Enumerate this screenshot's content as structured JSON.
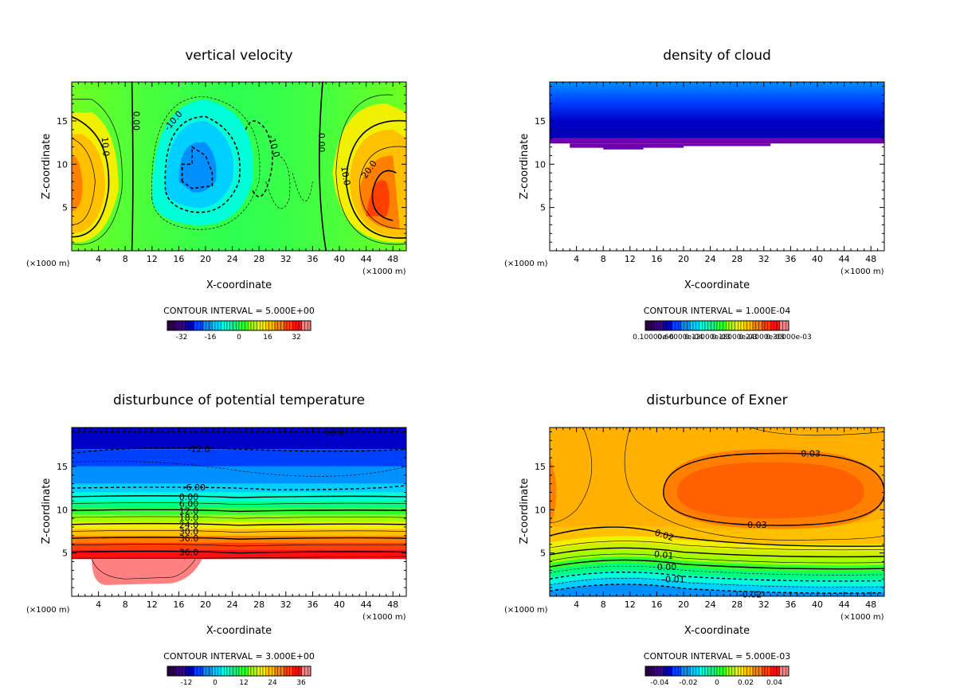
{
  "chart_data": [
    {
      "type": "heatmap",
      "title": "vertical velocity",
      "xlabel": "X-coordinate",
      "ylabel": "Z-coordinate",
      "x_unit": "(×1000 m)",
      "x_ticks": [
        "4",
        "8",
        "12",
        "16",
        "20",
        "24",
        "28",
        "32",
        "36",
        "40",
        "44",
        "48"
      ],
      "y_ticks": [
        "5",
        "10",
        "15"
      ],
      "xlim": [
        0,
        50
      ],
      "ylim": [
        0,
        19.5
      ],
      "contour_interval": "CONTOUR INTERVAL = 5.000E+00",
      "colorbar_ticks": [
        "-32",
        "-16",
        "0",
        "16",
        "32"
      ],
      "colorbar_range": [
        -40,
        40
      ],
      "contour_labels": [
        "10.0",
        "0.00",
        "-10.0",
        "-10.0",
        "0.00",
        "10.0",
        "20.0"
      ]
    },
    {
      "type": "heatmap",
      "title": "density of cloud",
      "xlabel": "X-coordinate",
      "ylabel": "Z-coordinate",
      "x_unit": "(×1000 m)",
      "x_ticks": [
        "4",
        "8",
        "12",
        "16",
        "20",
        "24",
        "28",
        "32",
        "36",
        "40",
        "44",
        "48"
      ],
      "y_ticks": [
        "5",
        "10",
        "15"
      ],
      "xlim": [
        0,
        50
      ],
      "ylim": [
        0,
        19.5
      ],
      "contour_interval": "CONTOUR INTERVAL = 1.000E-04",
      "colorbar_ticks": [
        "0.10000e-6",
        "0.60000e-04",
        "0.12000e-03",
        "0.18000e-03",
        "0.24000e-03",
        "0.30000e-03"
      ],
      "colorbar_range": [
        0,
        0.00032
      ],
      "cloud_base_z": 13
    },
    {
      "type": "heatmap",
      "title": "disturbunce of potential temperature",
      "xlabel": "X-coordinate",
      "ylabel": "Z-coordinate",
      "x_unit": "(×1000 m)",
      "x_ticks": [
        "4",
        "8",
        "12",
        "16",
        "20",
        "24",
        "28",
        "32",
        "36",
        "40",
        "44",
        "48"
      ],
      "y_ticks": [
        "5",
        "10",
        "15"
      ],
      "xlim": [
        0,
        50
      ],
      "ylim": [
        0,
        19.5
      ],
      "contour_interval": "CONTOUR INTERVAL = 3.000E+00",
      "colorbar_ticks": [
        "-12",
        "0",
        "12",
        "24",
        "36"
      ],
      "colorbar_range": [
        -20,
        40
      ],
      "contour_labels": [
        "-18.0",
        "-12.0",
        "-6.00",
        "0.00",
        "6.00",
        "12.0",
        "18.0",
        "24.0",
        "30.0",
        "36.0"
      ]
    },
    {
      "type": "heatmap",
      "title": "disturbunce of Exner",
      "xlabel": "X-coordinate",
      "ylabel": "Z-coordinate",
      "x_unit": "(×1000 m)",
      "x_ticks": [
        "4",
        "8",
        "12",
        "16",
        "20",
        "24",
        "28",
        "32",
        "36",
        "40",
        "44",
        "48"
      ],
      "y_ticks": [
        "5",
        "10",
        "15"
      ],
      "xlim": [
        0,
        50
      ],
      "ylim": [
        0,
        19.5
      ],
      "contour_interval": "CONTOUR INTERVAL = 5.000E-03",
      "colorbar_ticks": [
        "-0.04",
        "-0.02",
        "0",
        "0.02",
        "0.04"
      ],
      "colorbar_range": [
        -0.05,
        0.05
      ],
      "contour_labels": [
        "0.03",
        "0.03",
        "0.02",
        "0.01",
        "0.00",
        "-0.01",
        "-0.02"
      ]
    }
  ],
  "colors": {
    "background": "#ffffff",
    "frame": "#000000",
    "contour": "#000000"
  }
}
